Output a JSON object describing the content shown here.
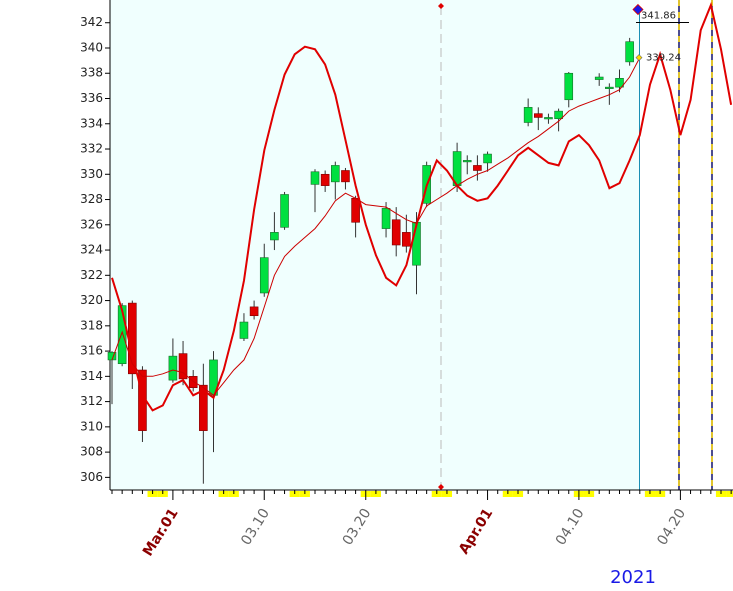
{
  "chart_data": {
    "type": "candlestick",
    "categories": [
      null,
      null,
      null,
      null,
      null,
      null,
      "Mar.01",
      null,
      null,
      null,
      null,
      null,
      null,
      null,
      null,
      "03.10",
      null,
      null,
      null,
      null,
      null,
      null,
      null,
      null,
      null,
      "03.20",
      null,
      null,
      null,
      null,
      null,
      null,
      null,
      null,
      null,
      null,
      null,
      "Apr.01",
      null,
      null,
      null,
      null,
      null,
      null,
      null,
      null,
      "04.10",
      null,
      null,
      null,
      null,
      null,
      null,
      null,
      null,
      null,
      "04.20",
      null,
      null,
      null,
      null,
      null
    ],
    "open": [
      315.3,
      315,
      319.8,
      314.5,
      null,
      null,
      313.7,
      315.8,
      314,
      313.3,
      312.5,
      null,
      null,
      317,
      319.5,
      320.6,
      324.8,
      325.8,
      null,
      null,
      329.2,
      330,
      329.4,
      330.3,
      328.1,
      null,
      null,
      325.7,
      326.4,
      325.4,
      322.8,
      327.7,
      null,
      null,
      329.1,
      331,
      330.7,
      330.9,
      null,
      null,
      null,
      334.1,
      334.8,
      334.4,
      334.4,
      335.9,
      null,
      null,
      337.5,
      336.8,
      336.9,
      338.9,
      null,
      null,
      null,
      null,
      null,
      null,
      null,
      null,
      null,
      null
    ],
    "high": [
      316,
      319.8,
      320,
      314.8,
      null,
      null,
      317,
      316.8,
      314.5,
      315,
      316,
      null,
      null,
      319,
      320,
      324.5,
      327,
      328.6,
      null,
      null,
      330.4,
      330.3,
      331,
      330.5,
      328.3,
      null,
      null,
      327.8,
      327.4,
      326.8,
      327,
      331,
      null,
      null,
      332.5,
      331.5,
      331.5,
      331.8,
      null,
      null,
      null,
      336,
      335.3,
      334.8,
      335.2,
      338.1,
      null,
      null,
      338,
      337.2,
      338.3,
      340.8,
      null,
      null,
      null,
      null,
      null,
      null,
      null,
      null,
      null,
      null
    ],
    "low": [
      311.8,
      314.8,
      313,
      308.8,
      null,
      null,
      313.5,
      313.3,
      312.8,
      305.5,
      308,
      null,
      null,
      316.8,
      318.5,
      320.3,
      324,
      325.6,
      null,
      null,
      327,
      328.6,
      328,
      328.8,
      325,
      null,
      null,
      325,
      323.5,
      323.8,
      320.5,
      327.4,
      null,
      null,
      328.6,
      330,
      329.5,
      330.2,
      null,
      null,
      null,
      333.8,
      333.5,
      334,
      333.4,
      335.3,
      null,
      null,
      337,
      335.5,
      336.5,
      338.6,
      null,
      null,
      null,
      null,
      null,
      null,
      null,
      null,
      null,
      null
    ],
    "close": [
      315.9,
      319.6,
      314.2,
      309.7,
      null,
      null,
      315.6,
      313.8,
      313.1,
      309.7,
      315.3,
      null,
      null,
      318.3,
      318.8,
      323.4,
      325.4,
      328.4,
      null,
      null,
      330.2,
      329.1,
      330.7,
      329.4,
      326.2,
      null,
      null,
      327.3,
      324.4,
      324.3,
      326.2,
      330.7,
      null,
      null,
      331.8,
      331.1,
      330.3,
      331.6,
      null,
      null,
      null,
      335.3,
      334.5,
      334.5,
      335,
      338,
      null,
      null,
      337.7,
      336.9,
      337.6,
      340.5,
      null,
      null,
      null,
      null,
      null,
      null,
      null,
      null,
      null,
      null
    ],
    "up_color": "#00e040",
    "down_color": "#e00000",
    "lines": [
      {
        "color": "#e00000",
        "width": 2,
        "values": [
          321.8,
          319.2,
          315.7,
          312.5,
          311.3,
          311.7,
          313.3,
          313.7,
          312.5,
          312.9,
          312.3,
          314.5,
          317.6,
          321.6,
          327.2,
          331.9,
          335.1,
          337.9,
          339.5,
          340.1,
          339.9,
          338.7,
          336.3,
          332.7,
          329.1,
          326,
          323.6,
          321.8,
          321.2,
          322.8,
          326,
          329.1,
          331.1,
          330.3,
          329.1,
          328.3,
          327.9,
          328.1,
          329.1,
          330.3,
          331.5,
          332.1,
          331.5,
          330.9,
          330.7,
          332.6,
          333.1,
          332.3,
          331.1,
          328.9,
          329.3,
          331.1,
          333.1,
          337.1,
          339.5,
          336.7,
          333.1,
          335.9,
          341.4,
          343.4,
          339.9,
          335.5
        ]
      },
      {
        "color": "#cc0000",
        "width": 1,
        "values": [
          315.3,
          317.5,
          315,
          314,
          314,
          314.2,
          314.5,
          314.3,
          313.6,
          313.1,
          312.5,
          313.5,
          314.5,
          315.3,
          317,
          319.5,
          322,
          323.5,
          324.3,
          325,
          325.7,
          326.7,
          327.9,
          328.5,
          328.1,
          327.6,
          327.5,
          327.4,
          326.9,
          326.4,
          326.1,
          327.5,
          328,
          328.5,
          329.1,
          329.6,
          330,
          330.3,
          330.8,
          331.3,
          331.9,
          332.5,
          333,
          333.6,
          334.2,
          335,
          335.4,
          335.7,
          336,
          336.3,
          336.7,
          337.7,
          339.24,
          null,
          null,
          null,
          null,
          null,
          null,
          null,
          null,
          null
        ]
      }
    ],
    "annotations": [
      {
        "value": 341.86
      },
      {
        "value": 339.24
      }
    ],
    "ylim": [
      305,
      343.8
    ],
    "yticks": [
      306,
      308,
      310,
      312,
      314,
      316,
      318,
      320,
      322,
      324,
      326,
      328,
      330,
      332,
      334,
      336,
      338,
      340,
      342
    ],
    "year_label": "2021",
    "month_label_color": "#8b0000",
    "day_label_color": "#666666",
    "year_label_color": "#1a1ae6",
    "background": "#f0fffe",
    "weekend_color": "#ffff00"
  }
}
